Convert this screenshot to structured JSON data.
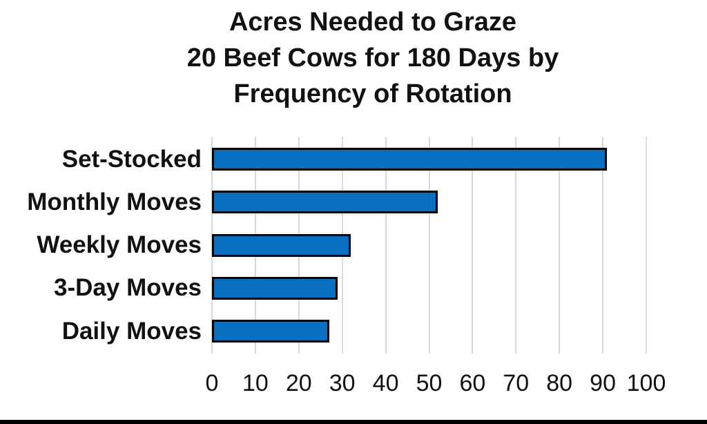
{
  "title": {
    "lines": [
      "Acres Needed to Graze",
      "20 Beef Cows for 180 Days by",
      "Frequency of Rotation"
    ]
  },
  "chart_data": {
    "type": "bar",
    "orientation": "horizontal",
    "title": "Acres Needed to Graze 20 Beef Cows for 180 Days by Frequency of Rotation",
    "categories": [
      "Set-Stocked",
      "Monthly Moves",
      "Weekly Moves",
      "3-Day Moves",
      "Daily Moves"
    ],
    "values": [
      91,
      52,
      32,
      29,
      27
    ],
    "xlabel": "",
    "ylabel": "",
    "xlim": [
      0,
      100
    ],
    "x_ticks": [
      0,
      10,
      20,
      30,
      40,
      50,
      60,
      70,
      80,
      90,
      100
    ],
    "grid": "vertical-gridlines-on",
    "legend": "none",
    "colors": {
      "bar_fill": "#0a6ebf",
      "bar_border": "#000000",
      "gridline": "#d8d8d8",
      "text": "#111111",
      "background": "#ffffff",
      "bottom_strip": "#000000"
    }
  }
}
